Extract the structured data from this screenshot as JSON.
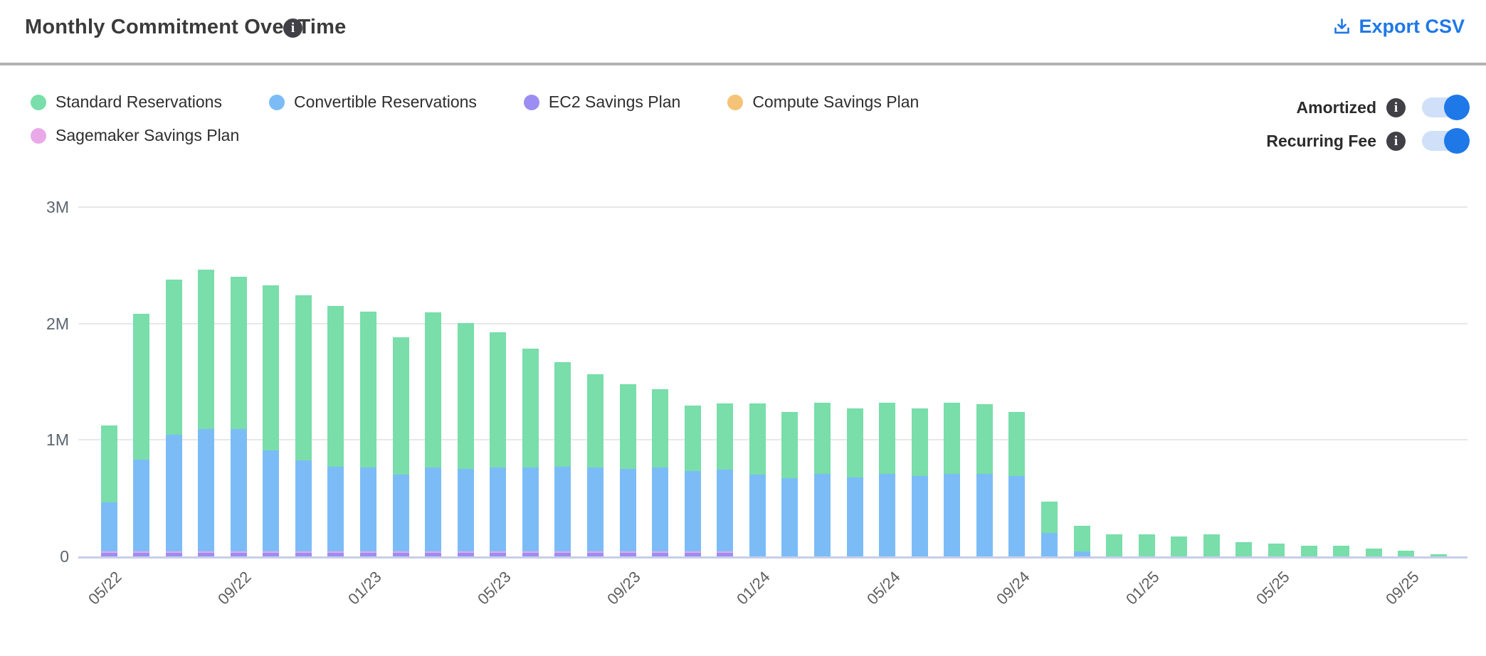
{
  "header": {
    "title": "Monthly Commitment Over Time",
    "export_label": "Export CSV"
  },
  "toggles": [
    {
      "label": "Amortized",
      "on": true
    },
    {
      "label": "Recurring Fee",
      "on": true
    }
  ],
  "colors": {
    "accent_blue": "#1e78e8",
    "toggle_track": "#cfe0f8",
    "gridline": "#e8e8e8",
    "axis_line": "#c7cee9"
  },
  "chart_data": {
    "type": "bar",
    "stacked": true,
    "title": "Monthly Commitment Over Time",
    "unit": "millions",
    "ylim": [
      0,
      3000000
    ],
    "grid": true,
    "legend_position": "top-left",
    "y_tick_labels": [
      "0",
      "1M",
      "2M",
      "3M"
    ],
    "x_tick_every": 4,
    "categories": [
      "05/22",
      "06/22",
      "07/22",
      "08/22",
      "09/22",
      "10/22",
      "11/22",
      "12/22",
      "01/23",
      "02/23",
      "03/23",
      "04/23",
      "05/23",
      "06/23",
      "07/23",
      "08/23",
      "09/23",
      "10/23",
      "11/23",
      "12/23",
      "01/24",
      "02/24",
      "03/24",
      "04/24",
      "05/24",
      "06/24",
      "07/24",
      "08/24",
      "09/24",
      "10/24",
      "11/24",
      "12/24",
      "01/25",
      "02/25",
      "03/25",
      "04/25",
      "05/25",
      "06/25",
      "07/25",
      "08/25",
      "09/25",
      "10/25"
    ],
    "x_tick_labels": [
      "05/22",
      "09/22",
      "01/23",
      "05/23",
      "09/23",
      "01/24",
      "05/24",
      "09/24",
      "01/25",
      "05/25",
      "09/25"
    ],
    "stack_order_bottom_to_top": [
      "EC2 Savings Plan",
      "Sagemaker Savings Plan",
      "Convertible Reservations",
      "Standard Reservations",
      "Compute Savings Plan"
    ],
    "series": [
      {
        "name": "Standard Reservations",
        "color": "#79deaa",
        "values_millions": [
          0.66,
          1.25,
          1.33,
          1.37,
          1.31,
          1.42,
          1.42,
          1.38,
          1.34,
          1.18,
          1.33,
          1.25,
          1.16,
          1.02,
          0.9,
          0.8,
          0.73,
          0.67,
          0.56,
          0.57,
          0.61,
          0.57,
          0.61,
          0.59,
          0.61,
          0.58,
          0.61,
          0.6,
          0.55,
          0.27,
          0.22,
          0.19,
          0.19,
          0.17,
          0.19,
          0.12,
          0.11,
          0.09,
          0.09,
          0.07,
          0.05,
          0.02
        ]
      },
      {
        "name": "Convertible Reservations",
        "color": "#7cbcf6",
        "values_millions": [
          0.42,
          0.79,
          1.0,
          1.05,
          1.05,
          0.87,
          0.78,
          0.73,
          0.72,
          0.66,
          0.72,
          0.71,
          0.72,
          0.72,
          0.73,
          0.72,
          0.71,
          0.72,
          0.69,
          0.7,
          0.7,
          0.67,
          0.71,
          0.68,
          0.71,
          0.69,
          0.71,
          0.71,
          0.69,
          0.2,
          0.04,
          0,
          0,
          0,
          0,
          0,
          0,
          0,
          0,
          0,
          0,
          0
        ]
      },
      {
        "name": "EC2 Savings Plan",
        "color": "#9c8df2",
        "values_millions": [
          0.03,
          0.03,
          0.03,
          0.03,
          0.03,
          0.03,
          0.03,
          0.03,
          0.03,
          0.03,
          0.03,
          0.03,
          0.03,
          0.03,
          0.03,
          0.03,
          0.03,
          0.03,
          0.03,
          0.03,
          0,
          0,
          0,
          0,
          0,
          0,
          0,
          0,
          0,
          0,
          0,
          0,
          0,
          0,
          0,
          0,
          0,
          0,
          0,
          0,
          0,
          0
        ]
      },
      {
        "name": "Compute Savings Plan",
        "color": "#f4c377",
        "values_millions": [
          0,
          0,
          0,
          0,
          0,
          0,
          0,
          0,
          0,
          0,
          0,
          0,
          0,
          0,
          0,
          0,
          0,
          0,
          0,
          0,
          0,
          0,
          0,
          0,
          0,
          0,
          0,
          0,
          0,
          0,
          0,
          0,
          0,
          0,
          0,
          0,
          0,
          0,
          0,
          0,
          0,
          0
        ]
      },
      {
        "name": "Sagemaker Savings Plan",
        "color": "#e9a9e9",
        "values_millions": [
          0.01,
          0.01,
          0.01,
          0.01,
          0.01,
          0.01,
          0.01,
          0.01,
          0.01,
          0.01,
          0.01,
          0.01,
          0.01,
          0.01,
          0.01,
          0.01,
          0.01,
          0.01,
          0.01,
          0.01,
          0,
          0,
          0,
          0,
          0,
          0,
          0,
          0,
          0,
          0,
          0,
          0,
          0,
          0,
          0,
          0,
          0,
          0,
          0,
          0,
          0,
          0
        ]
      }
    ]
  }
}
